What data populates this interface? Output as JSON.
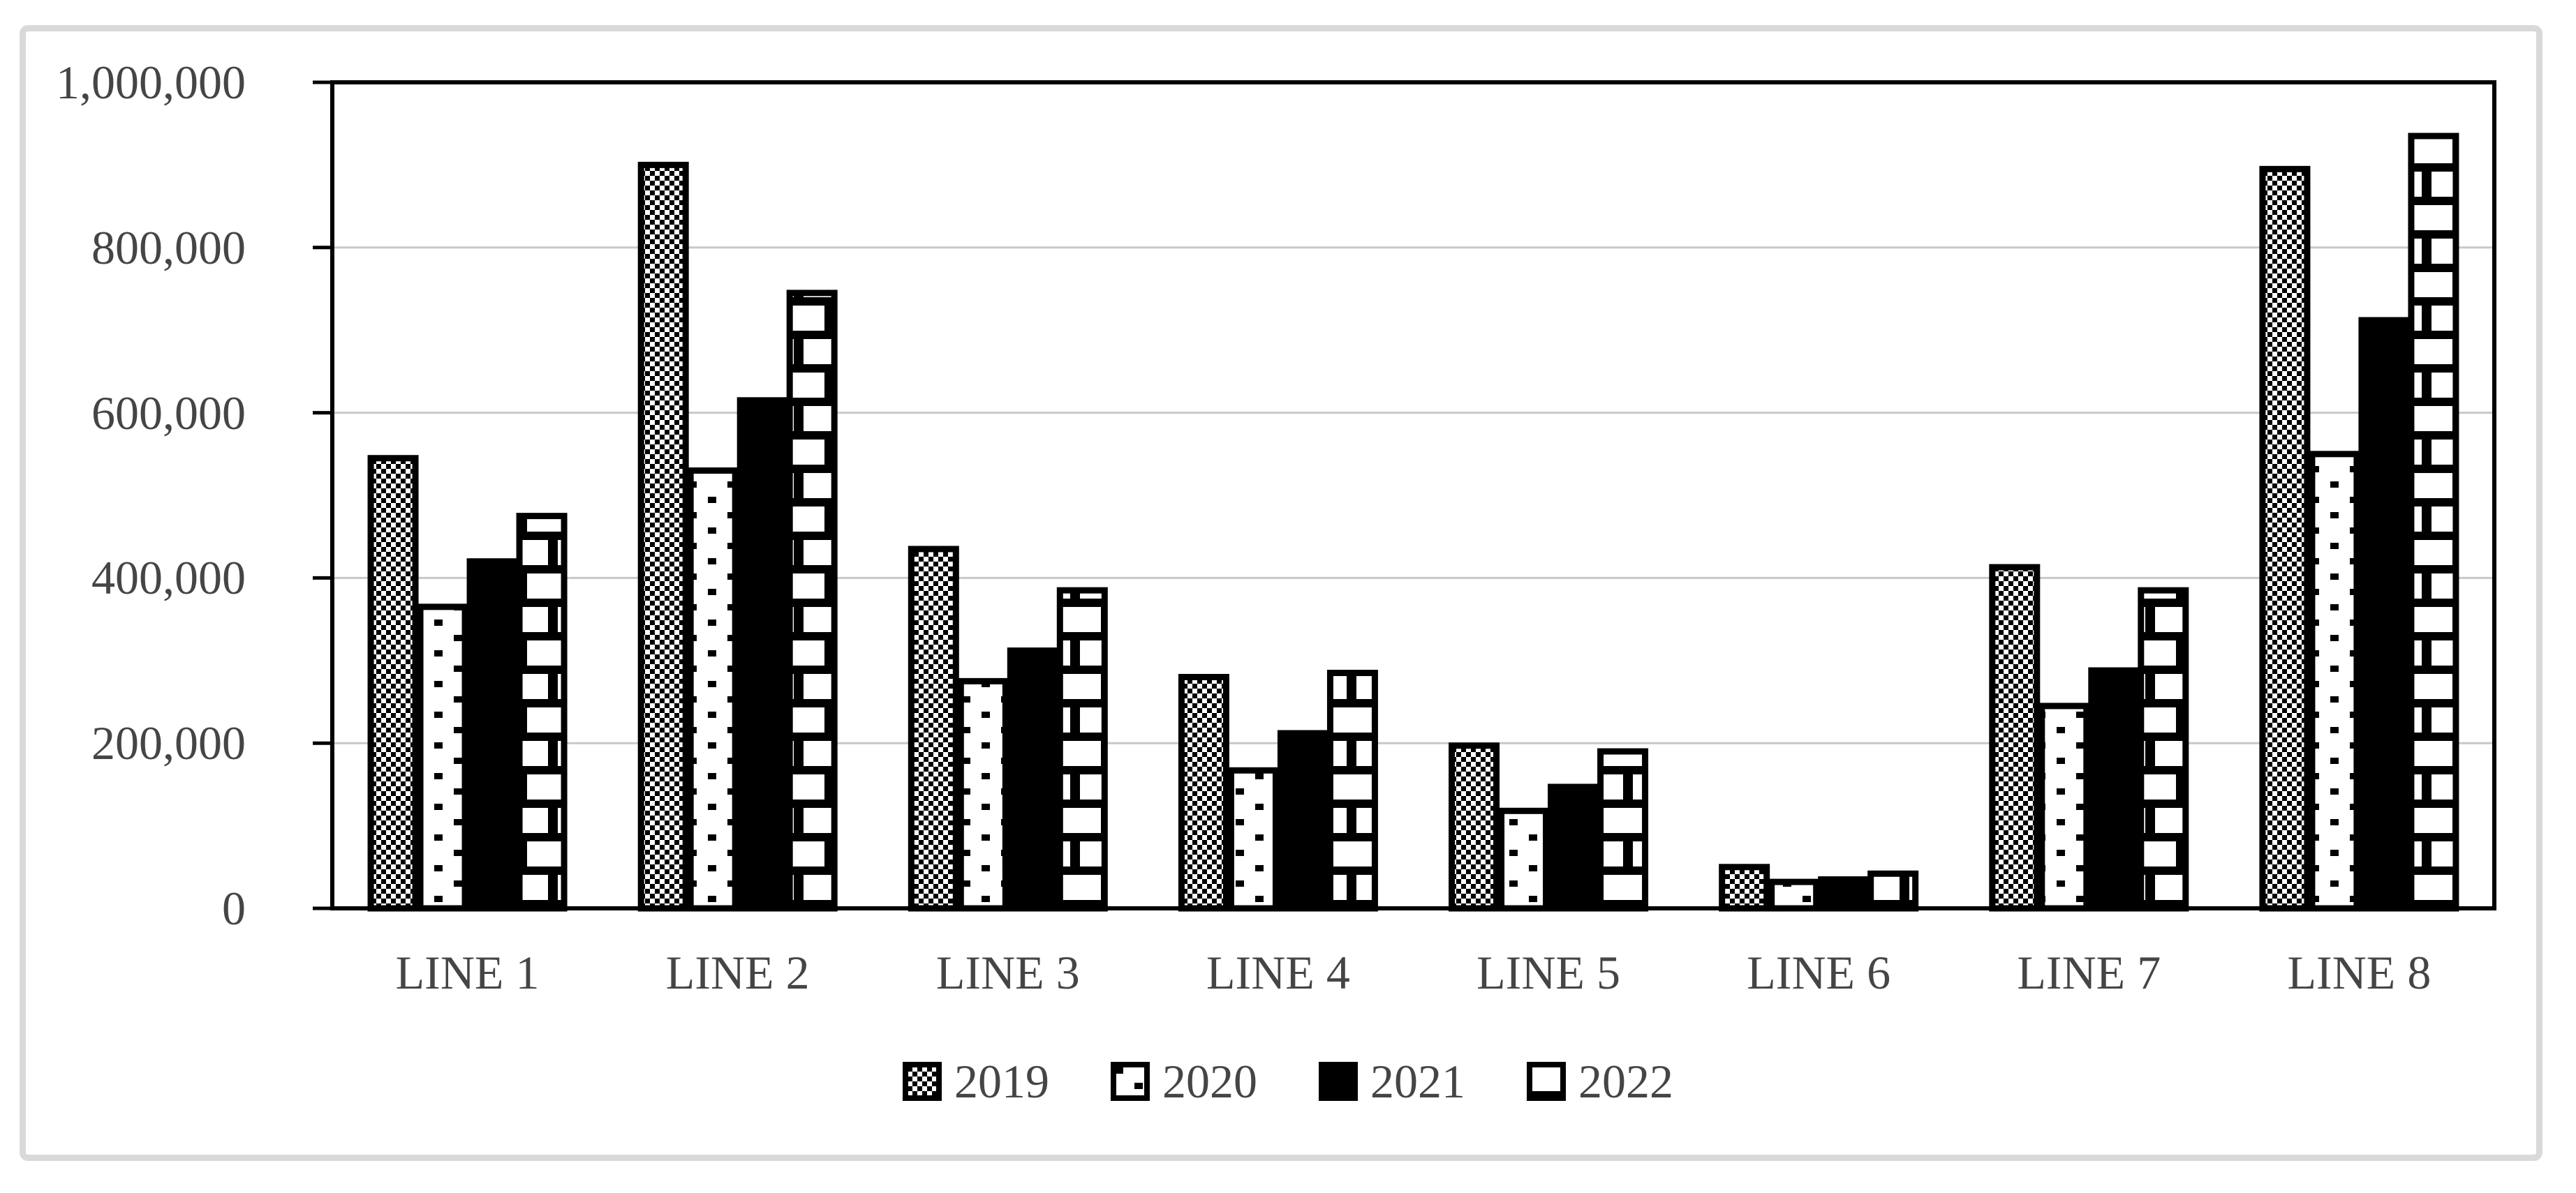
{
  "chart_data": {
    "type": "bar",
    "title": "",
    "xlabel": "",
    "ylabel": "",
    "categories": [
      "LINE 1",
      "LINE 2",
      "LINE 3",
      "LINE 4",
      "LINE 5",
      "LINE 6",
      "LINE 7",
      "LINE 8"
    ],
    "series": [
      {
        "name": "2019",
        "pattern": "checker",
        "values": [
          545000,
          900000,
          435000,
          280000,
          197000,
          50000,
          413000,
          895000
        ]
      },
      {
        "name": "2020",
        "pattern": "dots",
        "values": [
          365000,
          530000,
          275000,
          167000,
          118000,
          32000,
          245000,
          550000
        ]
      },
      {
        "name": "2021",
        "pattern": "solid",
        "values": [
          420000,
          615000,
          312000,
          212000,
          147000,
          35000,
          288000,
          712000
        ]
      },
      {
        "name": "2022",
        "pattern": "brick",
        "values": [
          475000,
          745000,
          385000,
          285000,
          190000,
          42000,
          385000,
          935000
        ]
      }
    ],
    "ylim": [
      0,
      1000000
    ],
    "ytick_labels": [
      "0",
      "200,000",
      "400,000",
      "600,000",
      "800,000",
      "1,000,000"
    ],
    "grid": true,
    "legend_position": "bottom"
  },
  "colors": {
    "bar_outline": "#000000",
    "solid_fill": "#000000",
    "pattern_background": "#ffffff",
    "gridline": "#c8c8c8",
    "axis_frame": "#000000",
    "label_text": "#454545",
    "chart_border": "#d9d9d9",
    "background": "#ffffff"
  }
}
